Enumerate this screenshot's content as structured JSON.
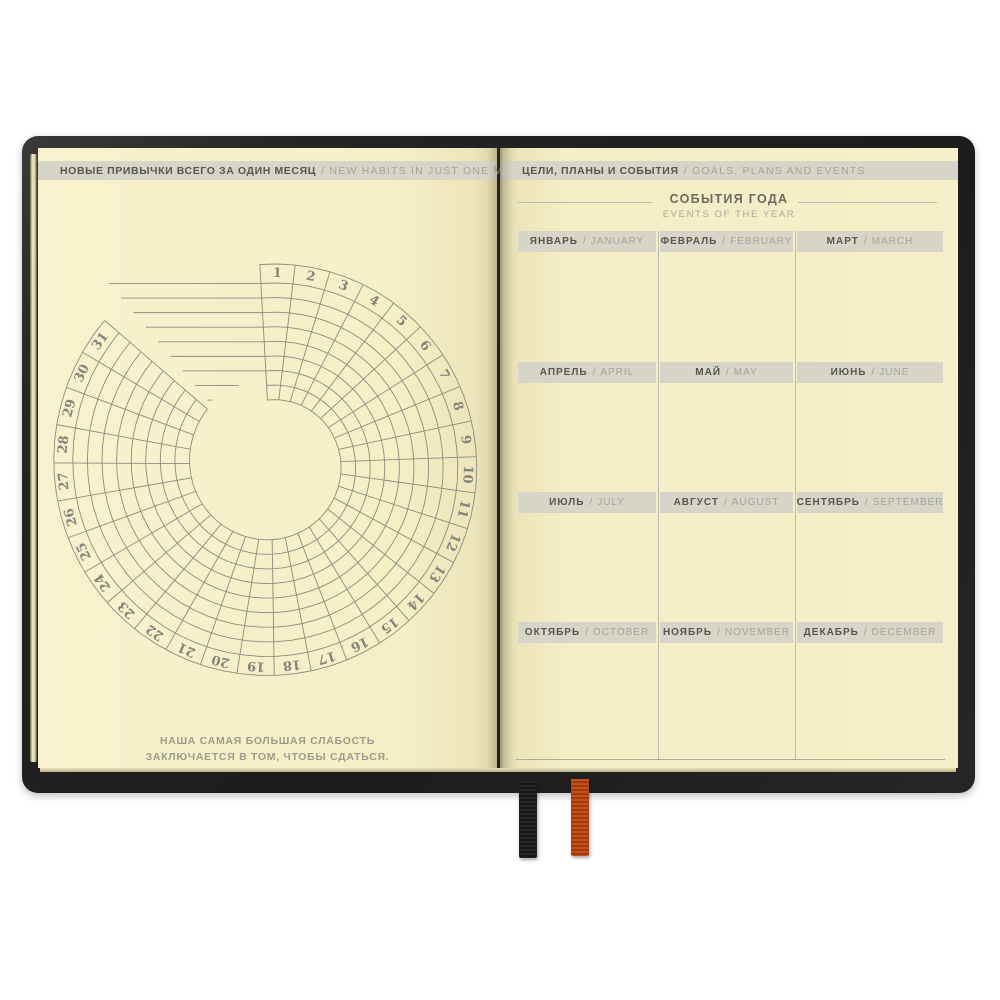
{
  "separator": "/",
  "left_page": {
    "banner": {
      "ru": "НОВЫЕ ПРИВЫЧКИ ВСЕГО ЗА ОДИН МЕСЯЦ",
      "en": "NEW HABITS IN JUST ONE MONTH"
    },
    "tracker": {
      "day_labels": [
        "1",
        "2",
        "3",
        "4",
        "5",
        "6",
        "7",
        "8",
        "9",
        "10",
        "11",
        "12",
        "13",
        "14",
        "15",
        "16",
        "17",
        "18",
        "19",
        "20",
        "21",
        "22",
        "23",
        "24",
        "25",
        "26",
        "27",
        "28",
        "29",
        "30",
        "31"
      ],
      "habit_rows": 8
    },
    "quote_line1": "НАША САМАЯ БОЛЬШАЯ СЛАБОСТЬ",
    "quote_line2": "ЗАКЛЮЧАЕТСЯ В ТОМ, ЧТОБЫ СДАТЬСЯ."
  },
  "right_page": {
    "banner": {
      "ru": "ЦЕЛИ, ПЛАНЫ И СОБЫТИЯ",
      "en": "GOALS, PLANS AND EVENTS"
    },
    "events_title": {
      "ru": "СОБЫТИЯ ГОДА",
      "en": "EVENTS OF THE YEAR"
    },
    "months": [
      {
        "ru": "ЯНВАРЬ",
        "en": "JANUARY"
      },
      {
        "ru": "ФЕВРАЛЬ",
        "en": "FEBRUARY"
      },
      {
        "ru": "МАРТ",
        "en": "MARCH"
      },
      {
        "ru": "АПРЕЛЬ",
        "en": "APRIL"
      },
      {
        "ru": "МАЙ",
        "en": "MAY"
      },
      {
        "ru": "ИЮНЬ",
        "en": "JUNE"
      },
      {
        "ru": "ИЮЛЬ",
        "en": "JULY"
      },
      {
        "ru": "АВГУСТ",
        "en": "AUGUST"
      },
      {
        "ru": "СЕНТЯБРЬ",
        "en": "SEPTEMBER"
      },
      {
        "ru": "ОКТЯБРЬ",
        "en": "OCTOBER"
      },
      {
        "ru": "НОЯБРЬ",
        "en": "NOVEMBER"
      },
      {
        "ru": "ДЕКАБРЬ",
        "en": "DECEMBER"
      }
    ]
  },
  "colors": {
    "page_bg": "#f5efc6",
    "banner_bg": "#d7d5c8",
    "cover": "#232323",
    "grid_line": "#8c8d7d",
    "text_dark": "#565750",
    "text_light": "#a3a59b",
    "ribbon_black": "#1f1f1f",
    "ribbon_orange": "#b5430f"
  }
}
